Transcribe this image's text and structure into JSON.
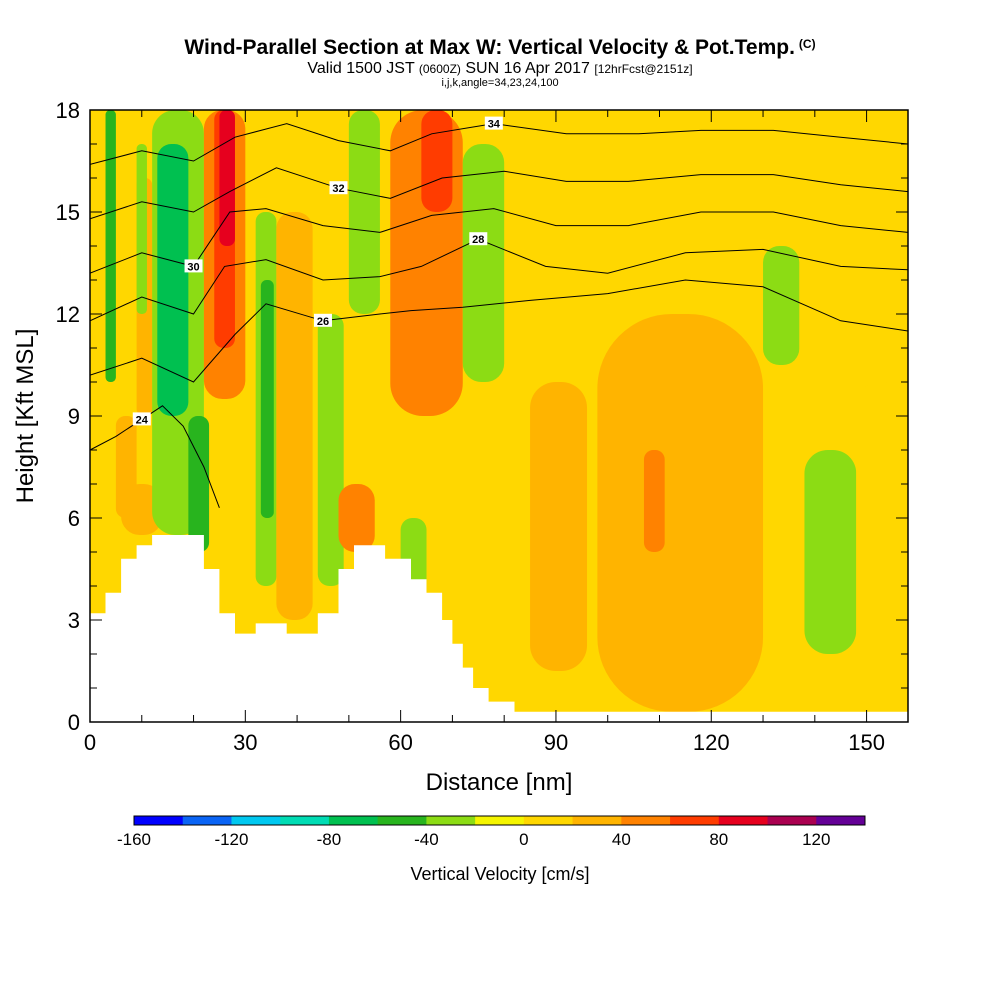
{
  "header": {
    "title": "Wind-Parallel Section at Max W: Vertical Velocity & Pot.Temp.",
    "title_mark": "(C)",
    "subtitle_a": "Valid 1500 JST",
    "subtitle_b": "(0600Z)",
    "subtitle_c": "SUN 16 Apr 2017",
    "subtitle_d": "[12hrFcst@2151z]",
    "params": "i,j,k,angle=34,23,24,100"
  },
  "chart_data": {
    "type": "heatmap",
    "xlabel": "Distance [nm]",
    "ylabel": "Height [Kft MSL]",
    "xlim": [
      0,
      158
    ],
    "ylim": [
      0,
      18
    ],
    "xticks": [
      0,
      30,
      60,
      90,
      120,
      150
    ],
    "yticks": [
      0,
      3,
      6,
      9,
      12,
      15,
      18
    ],
    "colorbar": {
      "title": "Vertical Velocity [cm/s]",
      "range": [
        -160,
        140
      ],
      "step": 20,
      "tick_labels": [
        -160,
        -120,
        -80,
        -40,
        0,
        40,
        80,
        120
      ],
      "colors": [
        "#0000ff",
        "#0a64f5",
        "#00c8f0",
        "#00dcb4",
        "#00c050",
        "#28b41e",
        "#8cdc14",
        "#f5f500",
        "#ffd700",
        "#ffb400",
        "#ff8200",
        "#ff3c00",
        "#e6001e",
        "#aa0050",
        "#640096"
      ]
    },
    "vertical_velocity_cells": [
      {
        "x": [
          0,
          3
        ],
        "y": [
          0,
          6
        ],
        "value": 10
      },
      {
        "x": [
          3,
          14
        ],
        "y": [
          4,
          18
        ],
        "value": 15
      },
      {
        "x": [
          3,
          5
        ],
        "y": [
          10,
          18
        ],
        "value": -50
      },
      {
        "x": [
          5,
          9
        ],
        "y": [
          6,
          9
        ],
        "value": 25
      },
      {
        "x": [
          6,
          14
        ],
        "y": [
          5.5,
          7
        ],
        "value": 30
      },
      {
        "x": [
          9,
          12
        ],
        "y": [
          9,
          16
        ],
        "value": 25
      },
      {
        "x": [
          9,
          11
        ],
        "y": [
          12,
          17
        ],
        "value": -30
      },
      {
        "x": [
          12,
          22
        ],
        "y": [
          5.5,
          18
        ],
        "value": -40
      },
      {
        "x": [
          13,
          19
        ],
        "y": [
          9,
          17
        ],
        "value": -70
      },
      {
        "x": [
          19,
          23
        ],
        "y": [
          5,
          9
        ],
        "value": -60
      },
      {
        "x": [
          22,
          30
        ],
        "y": [
          9.5,
          18
        ],
        "value": 50
      },
      {
        "x": [
          24,
          28
        ],
        "y": [
          11,
          18
        ],
        "value": 70
      },
      {
        "x": [
          25,
          28
        ],
        "y": [
          14,
          18
        ],
        "value": 90
      },
      {
        "x": [
          27,
          33
        ],
        "y": [
          3,
          9
        ],
        "value": 10
      },
      {
        "x": [
          32,
          36
        ],
        "y": [
          4,
          15
        ],
        "value": -30
      },
      {
        "x": [
          33,
          35.5
        ],
        "y": [
          6,
          13
        ],
        "value": -45
      },
      {
        "x": [
          36,
          43
        ],
        "y": [
          3,
          15
        ],
        "value": 20
      },
      {
        "x": [
          44,
          49
        ],
        "y": [
          4,
          12
        ],
        "value": -30
      },
      {
        "x": [
          48,
          55
        ],
        "y": [
          5,
          7
        ],
        "value": 40
      },
      {
        "x": [
          49,
          53
        ],
        "y": [
          5.2,
          6.2
        ],
        "value": 55
      },
      {
        "x": [
          50,
          56
        ],
        "y": [
          12,
          18
        ],
        "value": -40
      },
      {
        "x": [
          58,
          72
        ],
        "y": [
          9,
          18
        ],
        "value": 40
      },
      {
        "x": [
          60,
          70
        ],
        "y": [
          12,
          18
        ],
        "value": 55
      },
      {
        "x": [
          64,
          70
        ],
        "y": [
          15,
          18
        ],
        "value": 65
      },
      {
        "x": [
          60,
          65
        ],
        "y": [
          3.5,
          6
        ],
        "value": -25
      },
      {
        "x": [
          72,
          80
        ],
        "y": [
          10,
          17
        ],
        "value": -30
      },
      {
        "x": [
          82,
          100
        ],
        "y": [
          0.3,
          18
        ],
        "value": 15
      },
      {
        "x": [
          85,
          96
        ],
        "y": [
          1.5,
          10
        ],
        "value": 25
      },
      {
        "x": [
          100,
          108
        ],
        "y": [
          12,
          18
        ],
        "value": 15
      },
      {
        "x": [
          98,
          130
        ],
        "y": [
          0.3,
          12
        ],
        "value": 20
      },
      {
        "x": [
          103,
          125
        ],
        "y": [
          2,
          10.5
        ],
        "value": 35
      },
      {
        "x": [
          107,
          111
        ],
        "y": [
          5,
          8
        ],
        "value": 50
      },
      {
        "x": [
          130,
          137
        ],
        "y": [
          10.5,
          14
        ],
        "value": -25
      },
      {
        "x": [
          138,
          148
        ],
        "y": [
          2,
          8
        ],
        "value": -30
      },
      {
        "x": [
          148,
          158
        ],
        "y": [
          0.3,
          10
        ],
        "value": 15
      }
    ],
    "potential_temperature_contours": [
      {
        "level": 24,
        "label": "24",
        "points": [
          [
            0,
            8
          ],
          [
            5,
            8.4
          ],
          [
            10,
            8.9
          ],
          [
            14,
            9.3
          ],
          [
            18,
            8.7
          ],
          [
            22,
            7.5
          ],
          [
            25,
            6.3
          ]
        ]
      },
      {
        "level": 26,
        "label": "26",
        "points": [
          [
            0,
            10.2
          ],
          [
            10,
            10.7
          ],
          [
            20,
            10
          ],
          [
            28,
            11.4
          ],
          [
            34,
            12.3
          ],
          [
            45,
            11.8
          ],
          [
            56,
            12
          ],
          [
            62,
            12.1
          ],
          [
            72,
            12.2
          ],
          [
            85,
            12.4
          ],
          [
            100,
            12.6
          ],
          [
            115,
            13
          ],
          [
            130,
            12.8
          ],
          [
            145,
            11.8
          ],
          [
            158,
            11.5
          ]
        ]
      },
      {
        "level": 28,
        "label": "28",
        "points": [
          [
            0,
            11.8
          ],
          [
            10,
            12.5
          ],
          [
            20,
            12
          ],
          [
            26,
            13.4
          ],
          [
            34,
            13.6
          ],
          [
            45,
            13
          ],
          [
            56,
            13.1
          ],
          [
            64,
            13.4
          ],
          [
            75,
            14.2
          ],
          [
            88,
            13.4
          ],
          [
            100,
            13.2
          ],
          [
            115,
            13.8
          ],
          [
            130,
            13.9
          ],
          [
            145,
            13.4
          ],
          [
            158,
            13.3
          ]
        ]
      },
      {
        "level": 30,
        "label": "30",
        "points": [
          [
            0,
            13.2
          ],
          [
            10,
            13.8
          ],
          [
            20,
            13.4
          ],
          [
            27,
            15
          ],
          [
            34,
            15.1
          ],
          [
            45,
            14.6
          ],
          [
            56,
            14.4
          ],
          [
            66,
            14.9
          ],
          [
            78,
            15.1
          ],
          [
            90,
            14.6
          ],
          [
            104,
            14.6
          ],
          [
            118,
            15
          ],
          [
            132,
            15
          ],
          [
            145,
            14.6
          ],
          [
            158,
            14.4
          ]
        ]
      },
      {
        "level": 32,
        "label": "32",
        "points": [
          [
            0,
            14.8
          ],
          [
            10,
            15.3
          ],
          [
            20,
            15
          ],
          [
            27,
            15.6
          ],
          [
            36,
            16.3
          ],
          [
            48,
            15.7
          ],
          [
            58,
            15.4
          ],
          [
            68,
            16
          ],
          [
            80,
            16.2
          ],
          [
            92,
            15.9
          ],
          [
            104,
            15.9
          ],
          [
            118,
            16.1
          ],
          [
            132,
            16.1
          ],
          [
            145,
            15.8
          ],
          [
            158,
            15.6
          ]
        ]
      },
      {
        "level": 34,
        "label": "34",
        "points": [
          [
            0,
            16.4
          ],
          [
            10,
            16.8
          ],
          [
            20,
            16.5
          ],
          [
            28,
            17.2
          ],
          [
            38,
            17.6
          ],
          [
            48,
            17.1
          ],
          [
            58,
            16.8
          ],
          [
            66,
            17.3
          ],
          [
            78,
            17.6
          ],
          [
            92,
            17.3
          ],
          [
            106,
            17.3
          ],
          [
            118,
            17.4
          ],
          [
            132,
            17.4
          ],
          [
            145,
            17.2
          ],
          [
            158,
            17
          ]
        ]
      }
    ],
    "terrain_profile": [
      [
        0,
        3.2
      ],
      [
        3,
        3.8
      ],
      [
        6,
        4.8
      ],
      [
        9,
        5.2
      ],
      [
        12,
        5.5
      ],
      [
        22,
        4.5
      ],
      [
        25,
        3.2
      ],
      [
        28,
        2.6
      ],
      [
        32,
        2.9
      ],
      [
        38,
        2.6
      ],
      [
        44,
        3.2
      ],
      [
        48,
        4.5
      ],
      [
        51,
        5.2
      ],
      [
        57,
        4.8
      ],
      [
        62,
        4.2
      ],
      [
        65,
        3.8
      ],
      [
        68,
        3
      ],
      [
        70,
        2.3
      ],
      [
        72,
        1.6
      ],
      [
        74,
        1
      ],
      [
        77,
        0.6
      ],
      [
        82,
        0.3
      ],
      [
        90,
        0.3
      ],
      [
        158,
        0.3
      ]
    ]
  }
}
